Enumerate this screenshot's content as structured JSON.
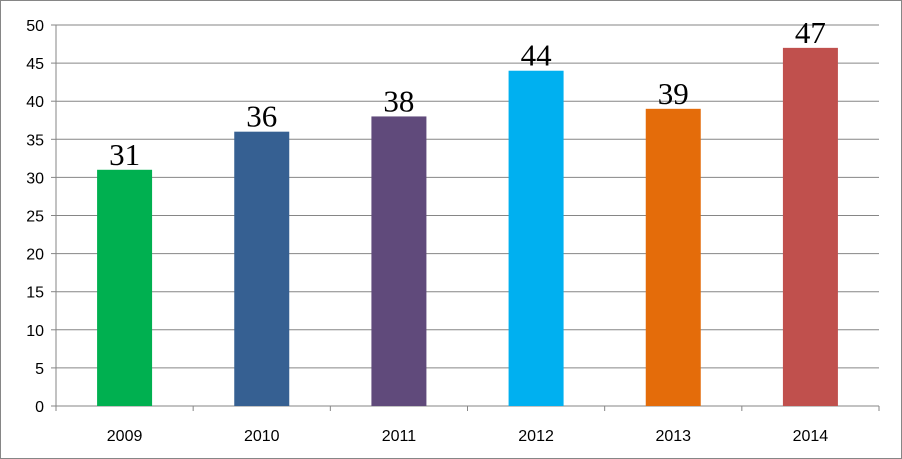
{
  "chart_data": {
    "type": "bar",
    "categories": [
      "2009",
      "2010",
      "2011",
      "2012",
      "2013",
      "2014"
    ],
    "values": [
      31,
      36,
      38,
      44,
      39,
      47
    ],
    "data_labels": [
      "31",
      "36",
      "38",
      "44",
      "39",
      "47"
    ],
    "colors": [
      "#00b050",
      "#366092",
      "#604a7b",
      "#00b0f0",
      "#e46c0a",
      "#c0504d"
    ],
    "y_ticks": [
      "0",
      "5",
      "10",
      "15",
      "20",
      "25",
      "30",
      "35",
      "40",
      "45",
      "50"
    ],
    "ylim": [
      0,
      50
    ],
    "title": "",
    "xlabel": "",
    "ylabel": "",
    "grid": true,
    "legend": "none"
  }
}
